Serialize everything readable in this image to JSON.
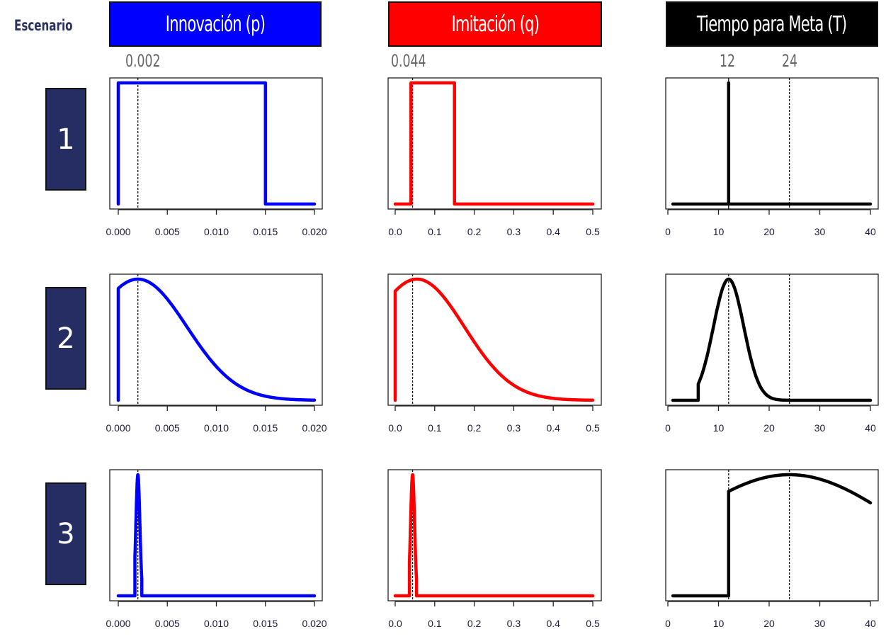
{
  "header": {
    "scenario_label": "Escenario",
    "columns": [
      {
        "id": "p",
        "title": "Innovación (p)",
        "color": "#0000ff",
        "reference_labels": [
          "0.002"
        ]
      },
      {
        "id": "q",
        "title": "Imitación (q)",
        "color": "#ff0000",
        "reference_labels": [
          "0.044"
        ]
      },
      {
        "id": "T",
        "title": "Tiempo para Meta (T)",
        "color": "#000000",
        "reference_labels": [
          "12",
          "24"
        ]
      }
    ]
  },
  "scenarios": [
    {
      "label": "1"
    },
    {
      "label": "2"
    },
    {
      "label": "3"
    }
  ],
  "chart_data": [
    {
      "type": "line",
      "scenario": "1",
      "variable": "Innovación (p)",
      "color": "#0000ff",
      "distribution": "uniform",
      "x": [
        0.0,
        0.0,
        0.015,
        0.015,
        0.02
      ],
      "y": [
        0,
        1,
        1,
        0,
        0
      ],
      "xlim": [
        0,
        0.02
      ],
      "xticks": [
        "0.000",
        "0.005",
        "0.010",
        "0.015",
        "0.020"
      ],
      "xtick_values": [
        0,
        0.005,
        0.01,
        0.015,
        0.02
      ],
      "reference_lines": [
        0.002
      ]
    },
    {
      "type": "line",
      "scenario": "1",
      "variable": "Imitación (q)",
      "color": "#ff0000",
      "distribution": "uniform",
      "x": [
        0.0,
        0.04,
        0.04,
        0.15,
        0.15,
        0.5
      ],
      "y": [
        0,
        0,
        1,
        1,
        0,
        0
      ],
      "xlim": [
        0,
        0.5
      ],
      "xticks": [
        "0.0",
        "0.1",
        "0.2",
        "0.3",
        "0.4",
        "0.5"
      ],
      "xtick_values": [
        0,
        0.1,
        0.2,
        0.3,
        0.4,
        0.5
      ],
      "reference_lines": [
        0.044
      ]
    },
    {
      "type": "line",
      "scenario": "1",
      "variable": "Tiempo para Meta (T)",
      "color": "#000000",
      "distribution": "point mass",
      "x": [
        1,
        12,
        12,
        12,
        40
      ],
      "y": [
        0,
        0,
        1,
        0,
        0
      ],
      "xlim": [
        0,
        40
      ],
      "xticks": [
        "0",
        "10",
        "20",
        "30",
        "40"
      ],
      "xtick_values": [
        0,
        10,
        20,
        30,
        40
      ],
      "reference_lines": [
        12,
        24
      ]
    },
    {
      "type": "line",
      "scenario": "2",
      "variable": "Innovación (p)",
      "color": "#0000ff",
      "distribution": "truncated normal",
      "params": {
        "mode": 0.002,
        "sd": 0.005,
        "lower": 0,
        "upper": 0.02
      },
      "xlim": [
        0,
        0.02
      ],
      "xticks": [
        "0.000",
        "0.005",
        "0.010",
        "0.015",
        "0.020"
      ],
      "xtick_values": [
        0,
        0.005,
        0.01,
        0.015,
        0.02
      ],
      "reference_lines": [
        0.002
      ]
    },
    {
      "type": "line",
      "scenario": "2",
      "variable": "Imitación (q)",
      "color": "#ff0000",
      "distribution": "truncated normal",
      "params": {
        "mode": 0.055,
        "sd": 0.12,
        "lower": 0,
        "upper": 0.5
      },
      "xlim": [
        0,
        0.5
      ],
      "xticks": [
        "0.0",
        "0.1",
        "0.2",
        "0.3",
        "0.4",
        "0.5"
      ],
      "xtick_values": [
        0,
        0.1,
        0.2,
        0.3,
        0.4,
        0.5
      ],
      "reference_lines": [
        0.044
      ]
    },
    {
      "type": "line",
      "scenario": "2",
      "variable": "Tiempo para Meta (T)",
      "color": "#000000",
      "distribution": "truncated normal",
      "params": {
        "mode": 12,
        "sd": 3,
        "lower": 6,
        "upper": 40,
        "start": 1
      },
      "xlim": [
        0,
        40
      ],
      "xticks": [
        "0",
        "10",
        "20",
        "30",
        "40"
      ],
      "xtick_values": [
        0,
        10,
        20,
        30,
        40
      ],
      "reference_lines": [
        12,
        24
      ]
    },
    {
      "type": "line",
      "scenario": "3",
      "variable": "Innovación (p)",
      "color": "#0000ff",
      "distribution": "narrow normal",
      "params": {
        "mode": 0.002,
        "sd": 0.0002,
        "lower": 0.0017,
        "upper": 0.0024
      },
      "xlim": [
        0,
        0.02
      ],
      "xticks": [
        "0.000",
        "0.005",
        "0.010",
        "0.015",
        "0.020"
      ],
      "xtick_values": [
        0,
        0.005,
        0.01,
        0.015,
        0.02
      ],
      "reference_lines": [
        0.002
      ]
    },
    {
      "type": "line",
      "scenario": "3",
      "variable": "Imitación (q)",
      "color": "#ff0000",
      "distribution": "narrow normal",
      "params": {
        "mode": 0.044,
        "sd": 0.005,
        "lower": 0.036,
        "upper": 0.054
      },
      "xlim": [
        0,
        0.5
      ],
      "xticks": [
        "0.0",
        "0.1",
        "0.2",
        "0.3",
        "0.4",
        "0.5"
      ],
      "xtick_values": [
        0,
        0.1,
        0.2,
        0.3,
        0.4,
        0.5
      ],
      "reference_lines": [
        0.044
      ]
    },
    {
      "type": "line",
      "scenario": "3",
      "variable": "Tiempo para Meta (T)",
      "color": "#000000",
      "distribution": "truncated normal",
      "params": {
        "mode": 24,
        "sd": 22,
        "lower": 12,
        "upper": 40,
        "start": 1
      },
      "xlim": [
        0,
        40
      ],
      "xticks": [
        "0",
        "10",
        "20",
        "30",
        "40"
      ],
      "xtick_values": [
        0,
        10,
        20,
        30,
        40
      ],
      "reference_lines": [
        12,
        24
      ]
    }
  ]
}
